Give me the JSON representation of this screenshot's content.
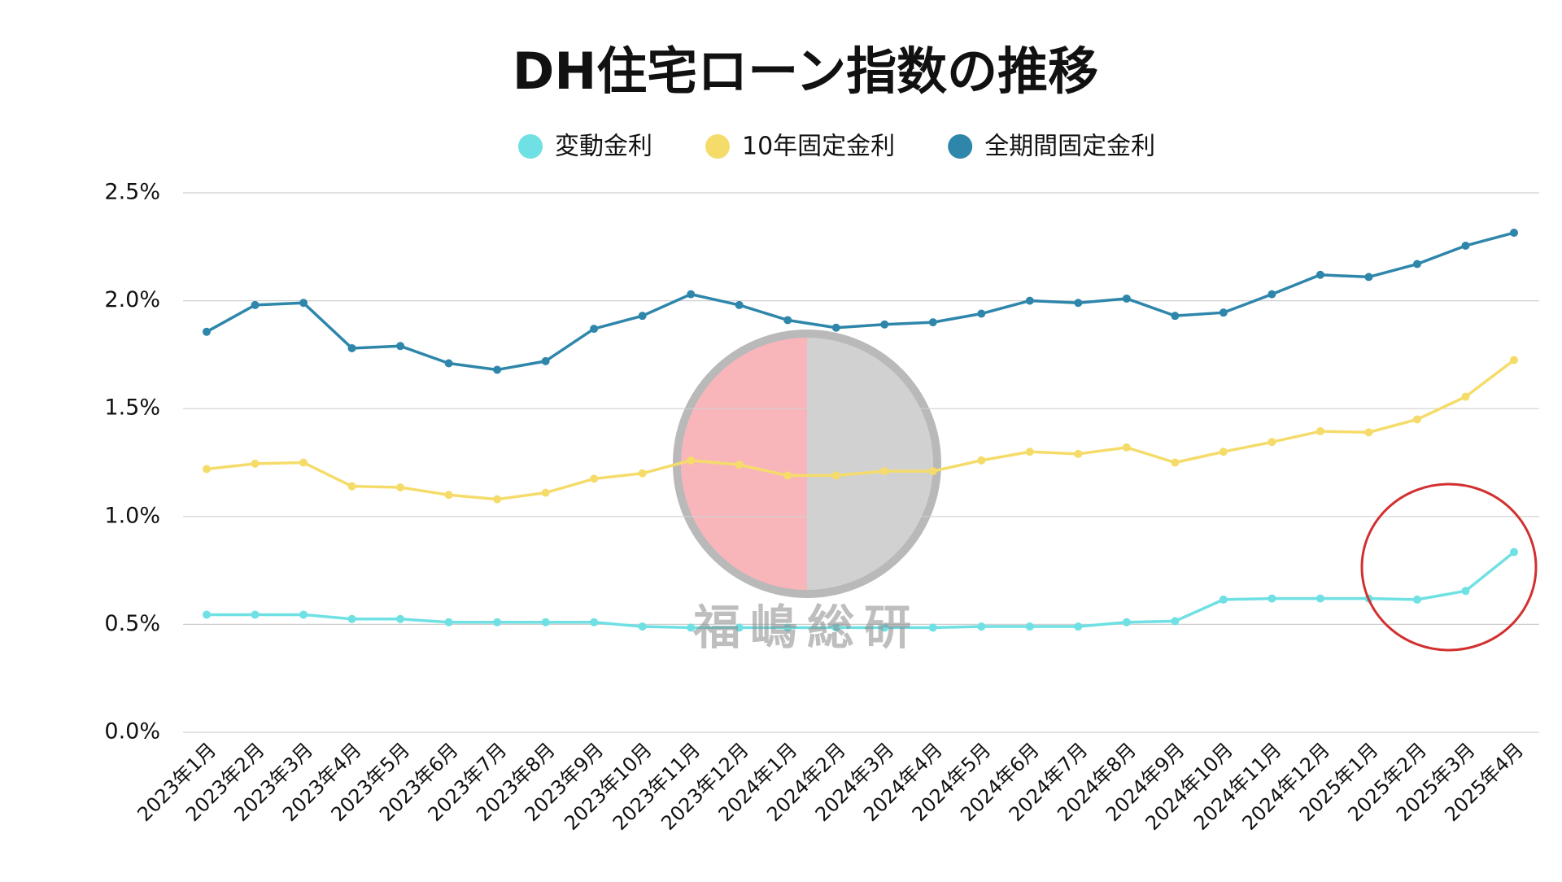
{
  "chart_data": {
    "type": "line",
    "title": "DH住宅ローン指数の推移",
    "watermark": "福嶋総研",
    "categories": [
      "2023年1月",
      "2023年2月",
      "2023年3月",
      "2023年4月",
      "2023年5月",
      "2023年6月",
      "2023年7月",
      "2023年8月",
      "2023年9月",
      "2023年10月",
      "2023年11月",
      "2023年12月",
      "2024年1月",
      "2024年2月",
      "2024年3月",
      "2024年4月",
      "2024年5月",
      "2024年6月",
      "2024年7月",
      "2024年8月",
      "2024年9月",
      "2024年10月",
      "2024年11月",
      "2024年12月",
      "2025年1月",
      "2025年2月",
      "2025年3月",
      "2025年4月"
    ],
    "series": [
      {
        "name": "変動金利",
        "color": "#6fe0e3",
        "values": [
          0.545,
          0.545,
          0.545,
          0.525,
          0.525,
          0.51,
          0.51,
          0.51,
          0.51,
          0.49,
          0.485,
          0.485,
          0.485,
          0.485,
          0.485,
          0.485,
          0.49,
          0.49,
          0.49,
          0.51,
          0.515,
          0.615,
          0.62,
          0.62,
          0.62,
          0.615,
          0.655,
          0.835
        ]
      },
      {
        "name": "10年固定金利",
        "color": "#f5dc6a",
        "values": [
          1.22,
          1.245,
          1.25,
          1.14,
          1.135,
          1.1,
          1.08,
          1.11,
          1.175,
          1.2,
          1.26,
          1.24,
          1.19,
          1.19,
          1.21,
          1.21,
          1.26,
          1.3,
          1.29,
          1.32,
          1.25,
          1.3,
          1.345,
          1.395,
          1.39,
          1.45,
          1.555,
          1.725
        ]
      },
      {
        "name": "全期間固定金利",
        "color": "#2e86ab",
        "values": [
          1.856,
          1.98,
          1.99,
          1.78,
          1.79,
          1.71,
          1.68,
          1.72,
          1.87,
          1.93,
          2.03,
          1.98,
          1.91,
          1.875,
          1.89,
          1.9,
          1.94,
          2.0,
          1.99,
          2.01,
          1.93,
          1.945,
          2.03,
          2.12,
          2.11,
          2.17,
          2.255,
          2.315
        ]
      }
    ],
    "ylim": [
      0,
      2.5
    ],
    "yticks": [
      {
        "value": 0,
        "label": "0.0%"
      },
      {
        "value": 0.5,
        "label": "0.5%"
      },
      {
        "value": 1,
        "label": "1.0%"
      },
      {
        "value": 1.5,
        "label": "1.5%"
      },
      {
        "value": 2,
        "label": "2.0%"
      },
      {
        "value": 2.5,
        "label": "2.5%"
      }
    ],
    "grid": true,
    "legend": "top"
  }
}
